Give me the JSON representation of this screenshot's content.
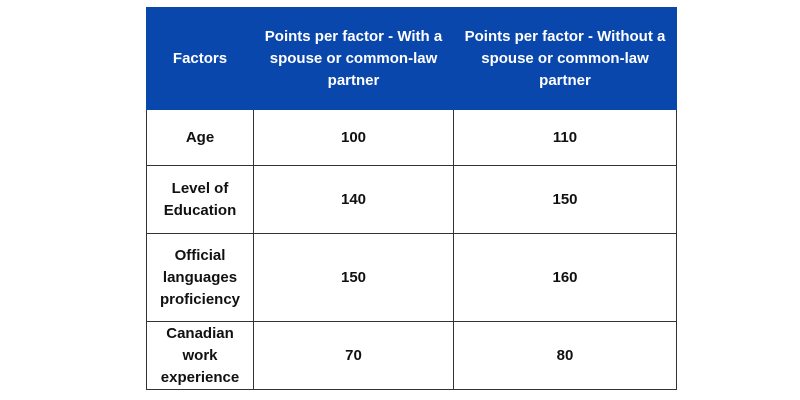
{
  "table": {
    "headers": [
      "Factors",
      "Points per factor - With a spouse or common-law partner",
      "Points per factor - Without a spouse or common-law partner"
    ],
    "rows": [
      {
        "factor": "Age",
        "with_spouse": "100",
        "without_spouse": "110"
      },
      {
        "factor": "Level of Education",
        "with_spouse": "140",
        "without_spouse": "150"
      },
      {
        "factor": "Official languages proficiency",
        "with_spouse": "150",
        "without_spouse": "160"
      },
      {
        "factor": "Canadian work experience",
        "with_spouse": "70",
        "without_spouse": "80"
      }
    ]
  },
  "colors": {
    "header_background": "#0a47ad",
    "header_text": "#ffffff",
    "body_text": "#111111",
    "border": "#333333"
  }
}
